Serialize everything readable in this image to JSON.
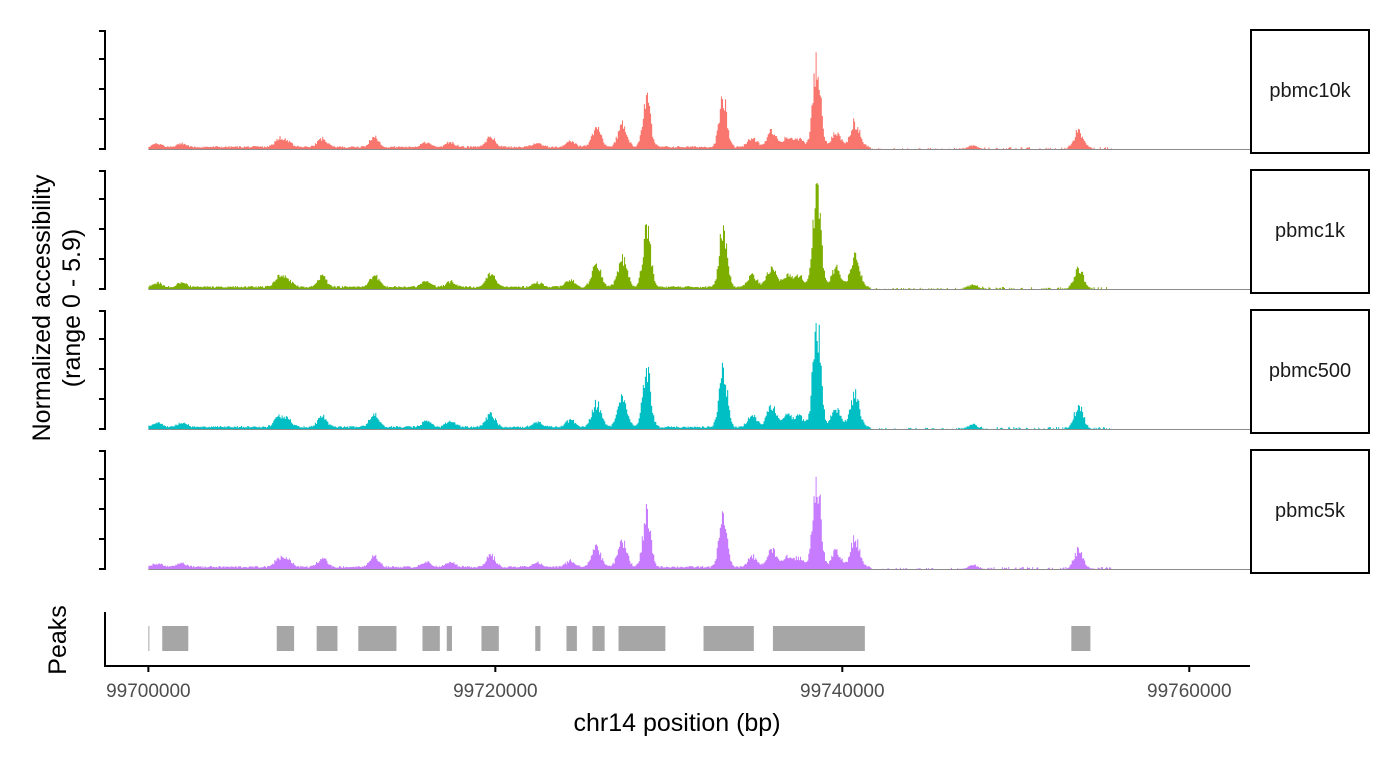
{
  "chart_data": {
    "type": "area",
    "subtype": "genome coverage track",
    "chromosome": "chr14",
    "xlabel": "chr14 position (bp)",
    "ylabel_line1": "Normalized accessibility",
    "ylabel_line2": "(range 0 - 5.9)",
    "xlim": [
      99697500,
      99763500
    ],
    "ylim": [
      0,
      5.9
    ],
    "x_ticks": [
      99700000,
      99720000,
      99740000,
      99760000
    ],
    "x_tick_labels": [
      "99700000",
      "99720000",
      "99740000",
      "99760000"
    ],
    "y_ticks": [
      0,
      1.5,
      3.0,
      4.5,
      5.9
    ],
    "peaks_label": "Peaks",
    "peak_regions": [
      [
        99700000,
        99700050
      ],
      [
        99700800,
        99702300
      ],
      [
        99707400,
        99708400
      ],
      [
        99709700,
        99710900
      ],
      [
        99712100,
        99714300
      ],
      [
        99715800,
        99716800
      ],
      [
        99717200,
        99717500
      ],
      [
        99719200,
        99720200
      ],
      [
        99722300,
        99722600
      ],
      [
        99724100,
        99724700
      ],
      [
        99725600,
        99726300
      ],
      [
        99727100,
        99729800
      ],
      [
        99732000,
        99734900
      ],
      [
        99736000,
        99741300
      ],
      [
        99753200,
        99754300
      ]
    ],
    "signal_range": [
      99700000,
      99755500
    ],
    "peak_features": [
      {
        "pos": 99700500,
        "h": 0.18
      },
      {
        "pos": 99701900,
        "h": 0.18
      },
      {
        "pos": 99707500,
        "h": 0.4
      },
      {
        "pos": 99708000,
        "h": 0.3
      },
      {
        "pos": 99710000,
        "h": 0.45
      },
      {
        "pos": 99713000,
        "h": 0.5
      },
      {
        "pos": 99716000,
        "h": 0.25
      },
      {
        "pos": 99717400,
        "h": 0.25
      },
      {
        "pos": 99719700,
        "h": 0.55
      },
      {
        "pos": 99722400,
        "h": 0.2
      },
      {
        "pos": 99724300,
        "h": 0.3
      },
      {
        "pos": 99725800,
        "h": 0.95
      },
      {
        "pos": 99727300,
        "h": 1.2
      },
      {
        "pos": 99728700,
        "h": 2.5
      },
      {
        "pos": 99733100,
        "h": 2.5
      },
      {
        "pos": 99734800,
        "h": 0.5
      },
      {
        "pos": 99735900,
        "h": 0.85
      },
      {
        "pos": 99736800,
        "h": 0.5
      },
      {
        "pos": 99737500,
        "h": 0.45
      },
      {
        "pos": 99738500,
        "h": 4.3
      },
      {
        "pos": 99739600,
        "h": 0.8
      },
      {
        "pos": 99740700,
        "h": 1.3
      },
      {
        "pos": 99747500,
        "h": 0.18
      },
      {
        "pos": 99753600,
        "h": 0.9
      }
    ],
    "series": [
      {
        "name": "pbmc10k",
        "color": "#f8766d",
        "scale": 1.0
      },
      {
        "name": "pbmc1k",
        "color": "#7cae00",
        "scale": 1.25
      },
      {
        "name": "pbmc500",
        "color": "#00bfc4",
        "scale": 1.28
      },
      {
        "name": "pbmc5k",
        "color": "#c77cff",
        "scale": 1.1
      }
    ]
  }
}
